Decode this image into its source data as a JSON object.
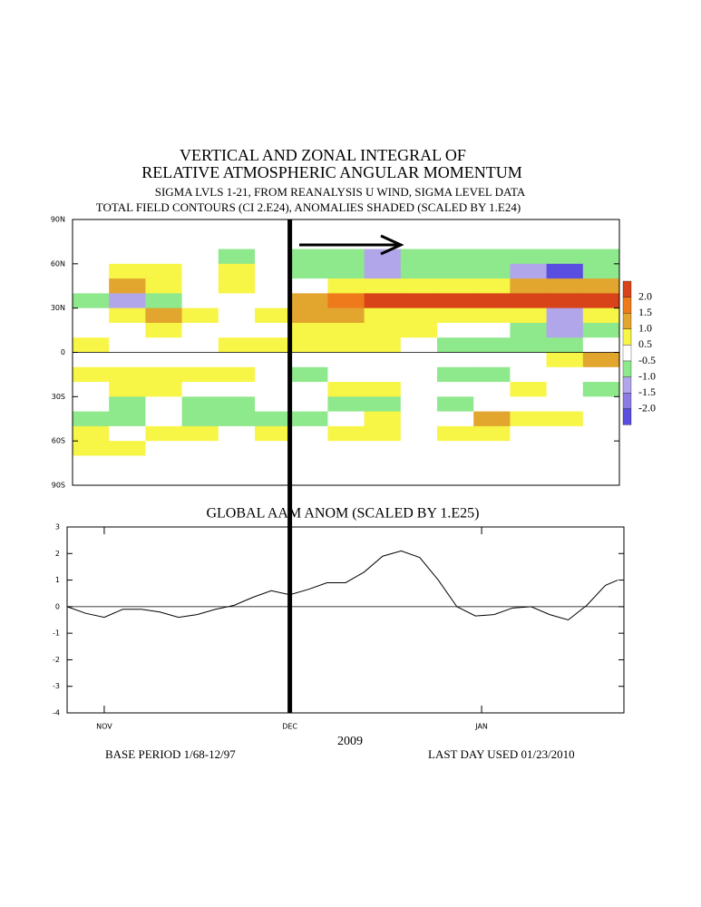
{
  "chart_data": [
    {
      "type": "heatmap",
      "title": [
        "VERTICAL AND ZONAL INTEGRAL OF",
        "RELATIVE ATMOSPHERIC ANGULAR MOMENTUM"
      ],
      "subtitle": [
        "SIGMA LVLS 1-21, FROM REANALYSIS U WIND, SIGMA LEVEL DATA",
        "TOTAL FIELD CONTOURS (CI 2.E24),  ANOMALIES SHADED (SCALED BY 1.E24)"
      ],
      "x": [
        3,
        9,
        15,
        21,
        27,
        33,
        39,
        45,
        51,
        57,
        63,
        69,
        75,
        81,
        87
      ],
      "y": [
        75,
        65,
        55,
        45,
        35,
        25,
        15,
        5,
        -5,
        -15,
        -25,
        -35,
        -45,
        -55,
        -65,
        -75
      ],
      "z": [
        [
          0,
          0,
          0,
          0,
          0,
          0,
          0,
          0,
          0,
          0,
          0,
          0,
          0,
          0,
          0
        ],
        [
          0,
          0,
          0,
          0,
          -0.7,
          0,
          -0.7,
          -0.8,
          -1.2,
          -0.7,
          -0.8,
          -0.8,
          -0.8,
          -0.9,
          -0.7
        ],
        [
          0,
          0.8,
          0.6,
          0,
          0.6,
          0,
          -0.7,
          -0.7,
          -1.2,
          -0.7,
          -0.7,
          -0.8,
          -1.2,
          -2.1,
          -0.7
        ],
        [
          0,
          1.2,
          0.7,
          0,
          0.6,
          0,
          0,
          0.6,
          0.7,
          0.6,
          0.6,
          0.8,
          1.0,
          1.0,
          1.2
        ],
        [
          -0.6,
          -1.2,
          -0.7,
          0,
          0,
          0,
          1.0,
          1.7,
          2.2,
          2.3,
          2.0,
          2.2,
          2.2,
          2.0,
          2.1
        ],
        [
          0,
          0.7,
          1.0,
          0.7,
          0,
          0.7,
          1.2,
          1.0,
          0.7,
          0.7,
          0.7,
          0.7,
          0.6,
          -1.2,
          0.7
        ],
        [
          0,
          0,
          0.7,
          0,
          0,
          0,
          0.7,
          0.7,
          0.7,
          0.6,
          0,
          0,
          -0.7,
          -1.3,
          -0.7
        ],
        [
          0.6,
          0,
          0,
          0,
          0.6,
          0.7,
          0.7,
          0.7,
          0.6,
          0,
          -0.7,
          -0.7,
          -0.8,
          -0.7,
          0
        ],
        [
          0,
          0,
          0,
          0,
          0,
          0,
          0,
          0,
          0,
          0,
          0,
          0,
          0,
          0.6,
          1.0
        ],
        [
          0.7,
          0.7,
          0.7,
          0.6,
          0.6,
          0,
          -0.7,
          0,
          0,
          0,
          -0.7,
          -1.0,
          0,
          0,
          0
        ],
        [
          0,
          0.6,
          0.7,
          0,
          0,
          0,
          0,
          0.8,
          0.6,
          0,
          0,
          0,
          0.6,
          0,
          -0.7
        ],
        [
          0,
          -0.7,
          0,
          -0.7,
          -0.6,
          0,
          0,
          -0.7,
          -0.7,
          0,
          -0.7,
          0,
          0,
          0,
          0
        ],
        [
          -0.7,
          -0.7,
          0,
          -0.7,
          -0.8,
          -1.0,
          -0.8,
          0,
          0.6,
          0,
          0,
          1.2,
          0.8,
          0.6,
          0
        ],
        [
          0.6,
          0,
          0.6,
          0.6,
          0,
          0.6,
          0,
          0.7,
          0.7,
          0,
          0.6,
          0.6,
          0,
          0,
          0
        ],
        [
          0.7,
          0.6,
          0,
          0,
          0,
          0,
          0,
          0,
          0,
          0,
          0,
          0,
          0,
          0,
          0
        ],
        [
          0,
          0,
          0,
          0,
          0,
          0,
          0,
          0,
          0,
          0,
          0,
          0,
          0,
          0,
          0
        ]
      ],
      "xlim": [
        0,
        90
      ],
      "ylim": [
        -90,
        90
      ],
      "yticks": [
        {
          "value": 90,
          "label": "90N"
        },
        {
          "value": 60,
          "label": "60N"
        },
        {
          "value": 30,
          "label": "30N"
        },
        0,
        {
          "value": -30,
          "label": "30S"
        },
        {
          "value": -60,
          "label": "60S"
        },
        {
          "value": -90,
          "label": "90S"
        }
      ],
      "levels": [
        {
          "value": 2,
          "label": "2.0"
        },
        1.5,
        {
          "value": 1,
          "label": "1.0"
        },
        0.5,
        -0.5,
        {
          "value": -1,
          "label": "-1.0"
        },
        -1.5,
        {
          "value": -2,
          "label": "-2.0"
        }
      ],
      "colors": [
        "#d8431a",
        "#ee7a1c",
        "#e2a52e",
        "#f7f545",
        "#ffffff",
        "#8ee88c",
        "#b2a6ea",
        "#8a7ce4",
        "#5a4ee0"
      ]
    },
    {
      "type": "line",
      "title": "GLOBAL AAM ANOM (SCALED BY 1.E25)",
      "x": [
        0,
        3,
        6,
        9,
        12,
        15,
        18,
        21,
        24,
        27,
        30,
        33,
        36,
        39,
        42,
        45,
        48,
        51,
        54,
        57,
        60,
        63,
        66,
        69,
        72,
        75,
        78,
        81,
        84,
        87,
        89
      ],
      "values": [
        0,
        -0.25,
        -0.4,
        -0.1,
        -0.1,
        -0.2,
        -0.4,
        -0.3,
        -0.1,
        0.05,
        0.35,
        0.6,
        0.45,
        0.65,
        0.9,
        0.9,
        1.3,
        1.9,
        2.1,
        1.85,
        1.0,
        0.0,
        -0.35,
        -0.3,
        -0.05,
        0,
        -0.3,
        -0.5,
        0.05,
        0.8,
        1.0
      ],
      "color": "#000000",
      "xlim": [
        0,
        90
      ],
      "ylim": [
        -4,
        3
      ],
      "yticks": [
        3,
        2,
        1,
        0,
        -1,
        -2,
        -3,
        -4
      ],
      "xticks": [
        {
          "value": 6,
          "label": "NOV"
        },
        {
          "value": 36,
          "label": "DEC"
        },
        {
          "value": 67,
          "label": "JAN"
        }
      ],
      "xlabel": "2009",
      "annotations": [
        "BASE PERIOD  1/68-12/97",
        "LAST DAY USED 01/23/2010"
      ]
    }
  ]
}
